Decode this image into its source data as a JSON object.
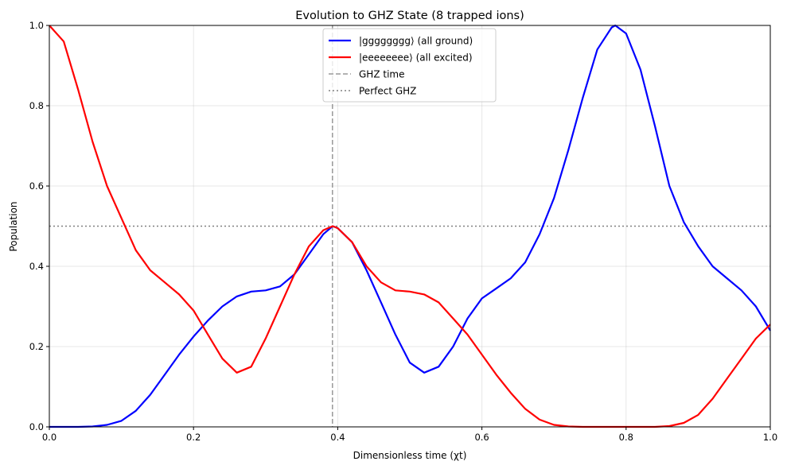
{
  "chart_data": {
    "type": "line",
    "title": "Evolution to GHZ State (8 trapped ions)",
    "xlabel": "Dimensionless time (χt)",
    "ylabel": "Population",
    "xlim": [
      0,
      1
    ],
    "ylim": [
      0,
      1
    ],
    "xticks": [
      "0.0",
      "0.2",
      "0.4",
      "0.6",
      "0.8",
      "1.0"
    ],
    "yticks": [
      "0.0",
      "0.2",
      "0.4",
      "0.6",
      "0.8",
      "1.0"
    ],
    "grid": true,
    "legend_position": "top-center",
    "x": [
      0,
      0.02,
      0.04,
      0.06,
      0.08,
      0.1,
      0.12,
      0.14,
      0.16,
      0.18,
      0.2,
      0.22,
      0.24,
      0.26,
      0.28,
      0.3,
      0.32,
      0.34,
      0.36,
      0.38,
      0.393,
      0.4,
      0.42,
      0.44,
      0.46,
      0.48,
      0.5,
      0.52,
      0.54,
      0.56,
      0.58,
      0.6,
      0.62,
      0.64,
      0.66,
      0.68,
      0.7,
      0.72,
      0.74,
      0.76,
      0.78,
      0.785,
      0.8,
      0.82,
      0.84,
      0.86,
      0.88,
      0.9,
      0.92,
      0.94,
      0.96,
      0.98,
      1.0
    ],
    "series": [
      {
        "name": "|gggggggg⟩ (all ground)",
        "color": "#0000ff",
        "style": "solid",
        "values": [
          0,
          0,
          0,
          0.001,
          0.005,
          0.015,
          0.04,
          0.08,
          0.13,
          0.18,
          0.225,
          0.265,
          0.3,
          0.325,
          0.337,
          0.34,
          0.35,
          0.38,
          0.43,
          0.48,
          0.5,
          0.495,
          0.46,
          0.39,
          0.31,
          0.23,
          0.16,
          0.135,
          0.15,
          0.2,
          0.27,
          0.32,
          0.345,
          0.37,
          0.41,
          0.48,
          0.57,
          0.69,
          0.82,
          0.94,
          0.995,
          1.0,
          0.98,
          0.89,
          0.75,
          0.6,
          0.51,
          0.45,
          0.4,
          0.37,
          0.34,
          0.3,
          0.24
        ]
      },
      {
        "name": "|eeeeeeee⟩ (all excited)",
        "color": "#ff0000",
        "style": "solid",
        "values": [
          1,
          0.96,
          0.84,
          0.71,
          0.6,
          0.52,
          0.44,
          0.39,
          0.36,
          0.33,
          0.29,
          0.23,
          0.17,
          0.135,
          0.15,
          0.22,
          0.3,
          0.38,
          0.45,
          0.49,
          0.5,
          0.495,
          0.46,
          0.4,
          0.36,
          0.34,
          0.337,
          0.33,
          0.31,
          0.27,
          0.23,
          0.18,
          0.13,
          0.085,
          0.045,
          0.018,
          0.005,
          0.001,
          0,
          0,
          0,
          0,
          0,
          0,
          0,
          0.002,
          0.01,
          0.03,
          0.07,
          0.12,
          0.17,
          0.22,
          0.255
        ]
      }
    ],
    "vlines": [
      {
        "name": "GHZ time",
        "x": 0.3927,
        "color": "#999999",
        "style": "dashed"
      }
    ],
    "hlines": [
      {
        "name": "Perfect GHZ",
        "y": 0.5,
        "color": "#808080",
        "style": "dotted"
      }
    ]
  }
}
